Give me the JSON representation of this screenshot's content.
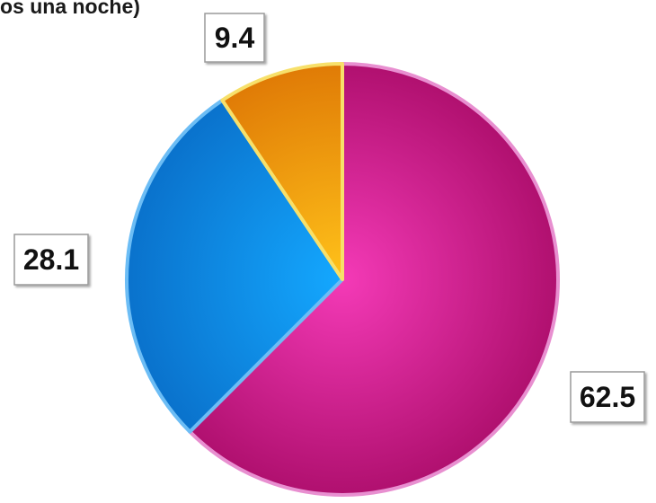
{
  "chart_data": {
    "type": "pie",
    "title": "os una noche)",
    "slices": [
      {
        "value": 62.5,
        "label": "62.5",
        "color": "#b0106f",
        "highlight": "#f43ab7",
        "edge": "#e88fd0"
      },
      {
        "value": 28.1,
        "label": "28.1",
        "color": "#0a72cc",
        "highlight": "#14a8ff",
        "edge": "#6cbdf5"
      },
      {
        "value": 9.4,
        "label": "9.4",
        "color": "#e07b06",
        "highlight": "#ffc21a",
        "edge": "#f7e06a"
      }
    ],
    "start_angle_deg": 0,
    "direction": "clockwise",
    "label_style": "white-box"
  }
}
